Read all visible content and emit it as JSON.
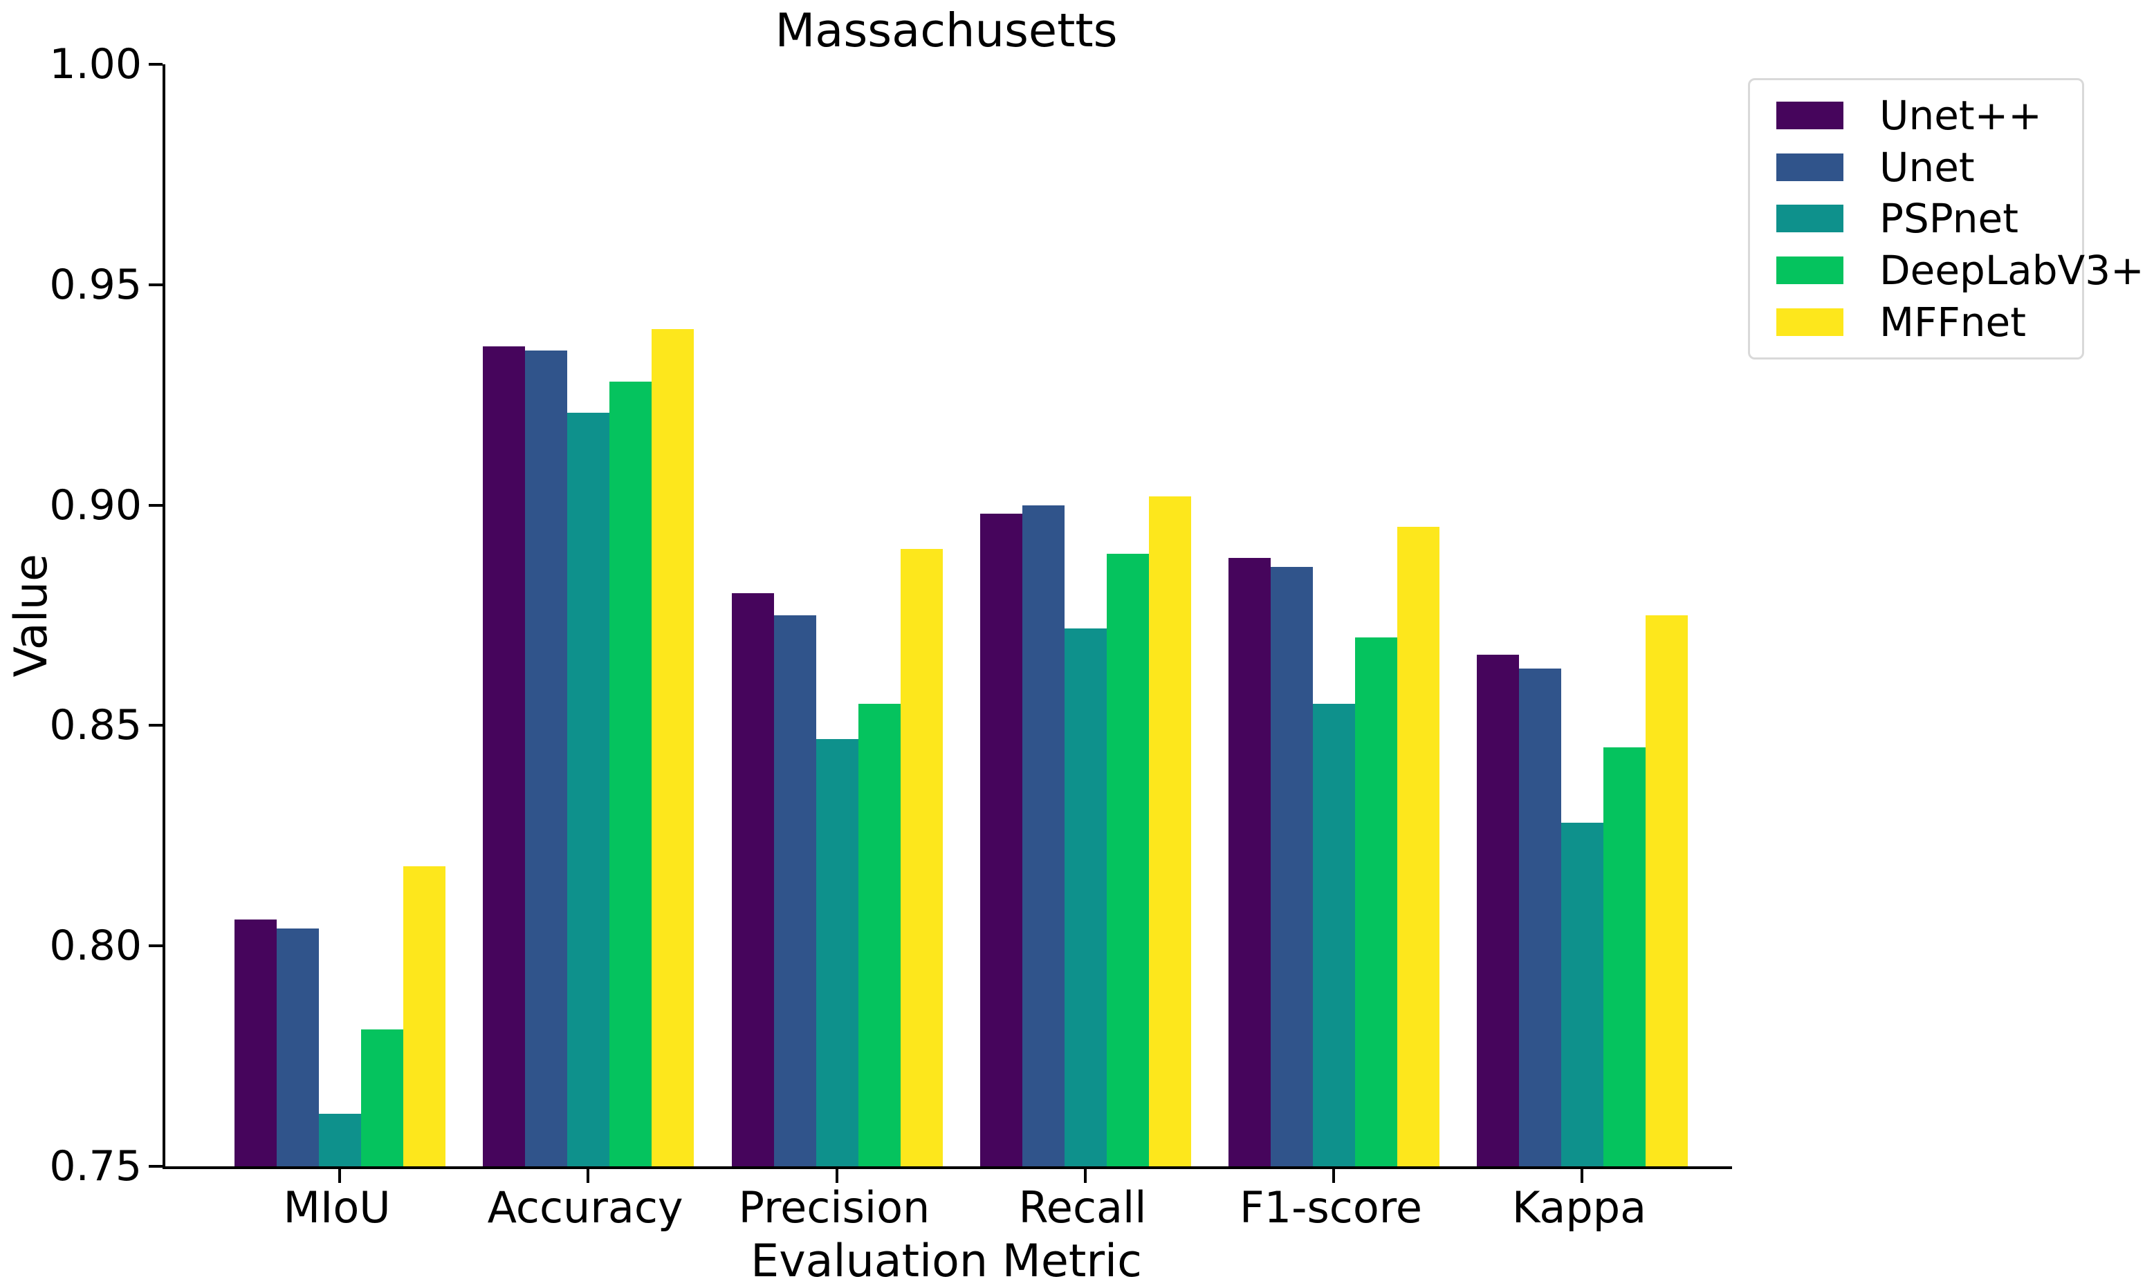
{
  "title": "Massachusetts",
  "axes": {
    "y_label": "Value",
    "x_label": "Evaluation Metric"
  },
  "chart_data": {
    "type": "bar",
    "title": "Massachusetts",
    "xlabel": "Evaluation Metric",
    "ylabel": "Value",
    "ylim": [
      0.75,
      1.0
    ],
    "ytick_step": 0.05,
    "ytick_labels": [
      "1.00",
      "0.95",
      "0.90",
      "0.85",
      "0.80",
      "0.75"
    ],
    "grid": false,
    "legend_position": "upper right outside",
    "categories": [
      "MIoU",
      "Accuracy",
      "Precision",
      "Recall",
      "F1-score",
      "Kappa"
    ],
    "series": [
      {
        "name": "Unet++",
        "color": "#46055c",
        "values": [
          0.806,
          0.936,
          0.88,
          0.898,
          0.888,
          0.866
        ]
      },
      {
        "name": "Unet",
        "color": "#30548b",
        "values": [
          0.804,
          0.935,
          0.875,
          0.9,
          0.886,
          0.863
        ]
      },
      {
        "name": "PSPnet",
        "color": "#0e918c",
        "values": [
          0.762,
          0.921,
          0.847,
          0.872,
          0.855,
          0.828
        ]
      },
      {
        "name": "DeepLabV3+",
        "color": "#05c35e",
        "values": [
          0.781,
          0.928,
          0.855,
          0.889,
          0.87,
          0.845
        ]
      },
      {
        "name": "MFFnet",
        "color": "#fde71c",
        "values": [
          0.818,
          0.94,
          0.89,
          0.902,
          0.895,
          0.875
        ]
      }
    ]
  }
}
